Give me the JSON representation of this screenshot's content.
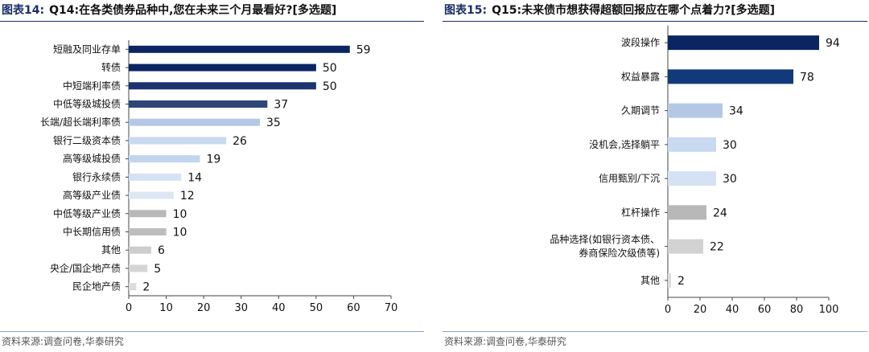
{
  "charts": [
    {
      "fig_no": "图表14:",
      "title": "Q14:在各类债券品种中,您在未来三个月最看好?[多选题]",
      "source": "资料来源:调查问卷,华泰研究",
      "chart_data": {
        "type": "bar",
        "orientation": "horizontal",
        "title": "Q14:在各类债券品种中,您在未来三个月最看好?[多选题]",
        "categories": [
          "短融及同业存单",
          "转债",
          "中短端利率债",
          "中低等级城投债",
          "长端/超长端利率债",
          "银行二级资本债",
          "高等级城投债",
          "银行永续债",
          "高等级产业债",
          "中低等级产业债",
          "中长期信用债",
          "其他",
          "央企/国企地产债",
          "民企地产债"
        ],
        "values": [
          59,
          50,
          50,
          37,
          35,
          26,
          19,
          14,
          12,
          10,
          10,
          6,
          5,
          2
        ],
        "value_labels": [
          "59",
          "50",
          "50",
          "37",
          "35",
          "26",
          "19",
          "14",
          "12",
          "10",
          "10",
          "6",
          "5",
          "2"
        ],
        "colors": [
          "#0b2563",
          "#0b2563",
          "#1b3470",
          "#2e4678",
          "#b4c8e6",
          "#c8d9f0",
          "#c3d4ee",
          "#d5e2f3",
          "#dde7f4",
          "#b8b8b8",
          "#bdbdbd",
          "#cdcdcd",
          "#d5d5d5",
          "#dcdcdc"
        ],
        "xlim": [
          0,
          70
        ],
        "xticks": [
          "0",
          "10",
          "20",
          "30",
          "40",
          "50",
          "60",
          "70"
        ],
        "grid": false,
        "xlabel": "",
        "ylabel": ""
      }
    },
    {
      "fig_no": "图表15:",
      "title": "Q15:未来债市想获得超额回报应在哪个点着力?[多选题]",
      "source": "资料来源:调查问卷,华泰研究",
      "chart_data": {
        "type": "bar",
        "orientation": "horizontal",
        "title": "Q15:未来债市想获得超额回报应在哪个点着力?[多选题]",
        "categories": [
          "波段操作",
          "权益暴露",
          "久期调节",
          "没机会,选择躺平",
          "信用甄别/下沉",
          "杠杆操作",
          "品种选择(如银行资本债、券商保险次级债等)",
          "其他"
        ],
        "category_lines": [
          [
            "波段操作"
          ],
          [
            "权益暴露"
          ],
          [
            "久期调节"
          ],
          [
            "没机会,选择躺平"
          ],
          [
            "信用甄别/下沉"
          ],
          [
            "杠杆操作"
          ],
          [
            "品种选择(如银行资本债、",
            "券商保险次级债等)"
          ],
          [
            "其他"
          ]
        ],
        "values": [
          94,
          78,
          34,
          30,
          30,
          24,
          22,
          2
        ],
        "value_labels": [
          "94",
          "78",
          "34",
          "30",
          "30",
          "24",
          "22",
          "2"
        ],
        "colors": [
          "#0b2563",
          "#123a78",
          "#b4c8e6",
          "#c8d9f0",
          "#d5e2f3",
          "#b8b8b8",
          "#d2d2d2",
          "#dcdcdc"
        ],
        "xlim": [
          0,
          100
        ],
        "xticks": [
          "0",
          "20",
          "40",
          "60",
          "80",
          "100"
        ],
        "grid": false,
        "xlabel": "",
        "ylabel": ""
      }
    }
  ]
}
